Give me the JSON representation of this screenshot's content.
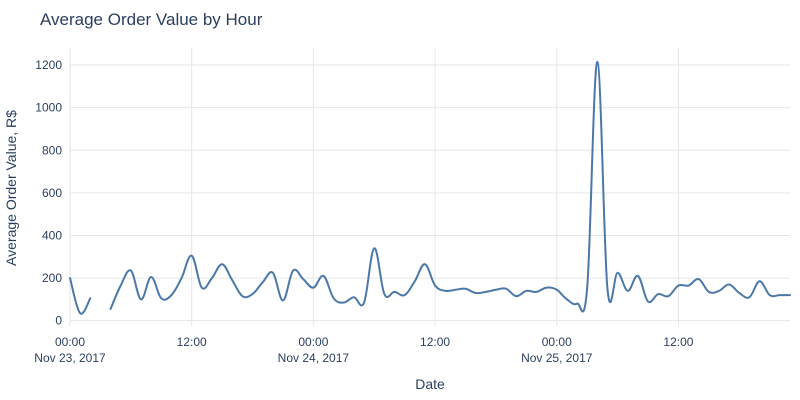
{
  "chart_data": {
    "type": "line",
    "title": "Average Order Value by Hour",
    "xlabel": "Date",
    "ylabel": "Average Order Value, R$",
    "ylim": [
      -25,
      1280
    ],
    "xlim_hours": [
      0,
      71
    ],
    "grid": true,
    "legend": "none",
    "series_color": "#4c78a8",
    "x_ticks": [
      {
        "hour": 0,
        "label": "00:00",
        "sublabel": "Nov 23, 2017"
      },
      {
        "hour": 12,
        "label": "12:00",
        "sublabel": ""
      },
      {
        "hour": 24,
        "label": "00:00",
        "sublabel": "Nov 24, 2017"
      },
      {
        "hour": 36,
        "label": "12:00",
        "sublabel": ""
      },
      {
        "hour": 48,
        "label": "00:00",
        "sublabel": "Nov 25, 2017"
      },
      {
        "hour": 60,
        "label": "12:00",
        "sublabel": ""
      }
    ],
    "y_ticks": [
      0,
      200,
      400,
      600,
      800,
      1000,
      1200
    ],
    "series": [
      {
        "segments": [
          {
            "x": [
              "2017-11-23 00:00",
              "2017-11-23 01:00",
              "2017-11-23 02:00"
            ],
            "y": [
              200,
              35,
              105
            ]
          },
          {
            "x": [
              "2017-11-23 04:00",
              "2017-11-23 05:00",
              "2017-11-23 06:00",
              "2017-11-23 07:00",
              "2017-11-23 08:00",
              "2017-11-23 09:00",
              "2017-11-23 10:00",
              "2017-11-23 11:00",
              "2017-11-23 12:00",
              "2017-11-23 13:00",
              "2017-11-23 14:00",
              "2017-11-23 15:00",
              "2017-11-23 16:00",
              "2017-11-23 17:00",
              "2017-11-23 18:00",
              "2017-11-23 19:00",
              "2017-11-23 20:00",
              "2017-11-23 21:00",
              "2017-11-23 22:00",
              "2017-11-23 23:00",
              "2017-11-24 00:00",
              "2017-11-24 01:00",
              "2017-11-24 02:00",
              "2017-11-24 03:00",
              "2017-11-24 04:00",
              "2017-11-24 05:00",
              "2017-11-24 06:00",
              "2017-11-24 07:00",
              "2017-11-24 08:00",
              "2017-11-24 09:00",
              "2017-11-24 10:00",
              "2017-11-24 11:00",
              "2017-11-24 12:00",
              "2017-11-24 13:00",
              "2017-11-24 14:00",
              "2017-11-24 15:00",
              "2017-11-24 16:00",
              "2017-11-24 17:00",
              "2017-11-24 18:00",
              "2017-11-24 19:00",
              "2017-11-24 20:00",
              "2017-11-24 21:00",
              "2017-11-24 22:00",
              "2017-11-24 23:00",
              "2017-11-25 00:00",
              "2017-11-25 01:00",
              "2017-11-25 02:00",
              "2017-11-25 03:00",
              "2017-11-25 04:00",
              "2017-11-25 05:00",
              "2017-11-25 06:00",
              "2017-11-25 07:00",
              "2017-11-25 08:00",
              "2017-11-25 09:00",
              "2017-11-25 10:00",
              "2017-11-25 11:00",
              "2017-11-25 12:00",
              "2017-11-25 13:00",
              "2017-11-25 14:00",
              "2017-11-25 15:00",
              "2017-11-25 16:00",
              "2017-11-25 17:00",
              "2017-11-25 18:00",
              "2017-11-25 19:00",
              "2017-11-25 20:00",
              "2017-11-25 21:00",
              "2017-11-25 22:00",
              "2017-11-25 23:00"
            ],
            "y": [
              55,
              165,
              235,
              100,
              205,
              105,
              120,
              200,
              305,
              155,
              200,
              265,
              190,
              115,
              125,
              180,
              225,
              95,
              235,
              195,
              155,
              210,
              105,
              85,
              110,
              85,
              340,
              125,
              135,
              120,
              185,
              265,
              165,
              140,
              145,
              150,
              130,
              135,
              145,
              150,
              115,
              140,
              135,
              155,
              145,
              100,
              80,
              155,
              1215,
              150,
              225,
              140,
              210,
              90,
              125,
              115,
              165,
              165,
              195,
              135,
              140,
              170,
              130,
              110,
              185,
              120,
              120,
              120
            ]
          }
        ]
      }
    ]
  }
}
